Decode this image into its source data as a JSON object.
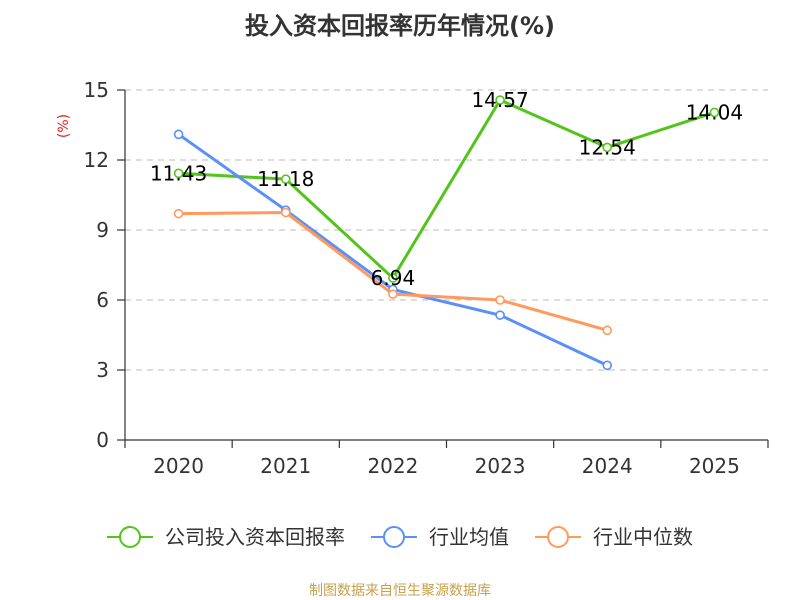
{
  "chart_data": {
    "type": "line",
    "title": "投入资本回报率历年情况(%)",
    "xlabel": "",
    "ylabel": "(%)",
    "categories": [
      "2020",
      "2021",
      "2022",
      "2023",
      "2024",
      "2025"
    ],
    "ylim": [
      0,
      15
    ],
    "yticks": [
      0,
      3,
      6,
      9,
      12,
      15
    ],
    "grid": "horizontal-dashed",
    "legend_position": "bottom",
    "series": [
      {
        "name": "公司投入资本回报率",
        "color": "#52c41a",
        "values": [
          11.43,
          11.18,
          6.94,
          14.57,
          12.54,
          14.04
        ],
        "labels": [
          "11.43",
          "11.18",
          "6.94",
          "14.57",
          "12.54",
          "14.04"
        ]
      },
      {
        "name": "行业均值",
        "color": "#5b8ff9",
        "values": [
          13.1,
          9.85,
          6.45,
          5.35,
          3.2,
          null
        ],
        "labels": []
      },
      {
        "name": "行业中位数",
        "color": "#ff9a5c",
        "values": [
          9.7,
          9.75,
          6.25,
          6.0,
          4.7,
          null
        ],
        "labels": []
      }
    ]
  },
  "source_text": "制图数据来自恒生聚源数据库",
  "colors": {
    "axis": "#333333",
    "grid": "#bbbbbb",
    "ylabel": "#e02020",
    "source": "#c8a04b"
  }
}
